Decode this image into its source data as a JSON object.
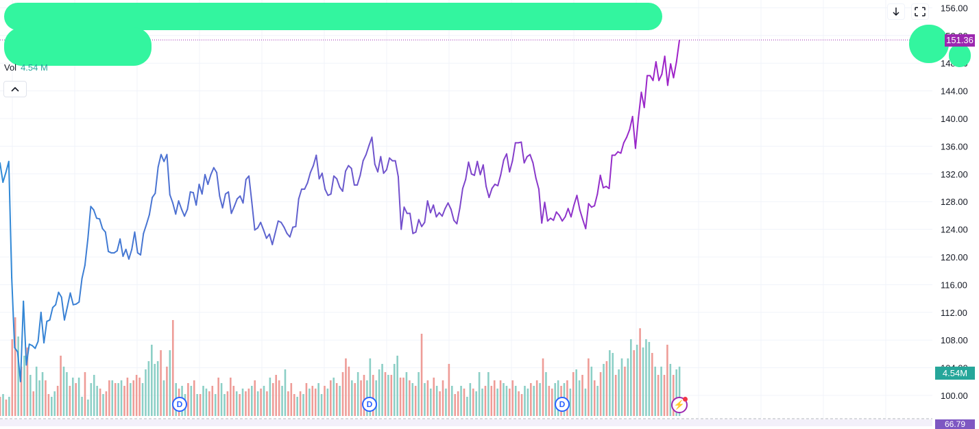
{
  "legend": {
    "volume_label": "Vol",
    "volume_value": "4.54 M"
  },
  "badges": {
    "last_price": "151.36",
    "last_volume": "4.54M",
    "oscillator": "66.79"
  },
  "events": {
    "dividend_marker": "D",
    "flash_marker": "⚡"
  },
  "colors": {
    "line_start": "#2e89d6",
    "line_mid": "#6a5acd",
    "line_end": "#a020c8",
    "volume_up": "#8ccfc6",
    "volume_down": "#ee9c97",
    "price_badge": "#9c27b0",
    "grid": "#f0f3fa"
  },
  "icons": {
    "scroll_down": "arrow-down-icon",
    "fullscreen": "fullscreen-icon",
    "collapse": "chevron-up-icon"
  },
  "chart_data": {
    "type": "line",
    "ylim": [
      98,
      157
    ],
    "y_ticks": [
      "156.00",
      "152.00",
      "148.00",
      "144.00",
      "140.00",
      "136.00",
      "132.00",
      "128.00",
      "124.00",
      "120.00",
      "116.00",
      "112.00",
      "108.00",
      "104.00",
      "100.00"
    ],
    "last_price_line": 151.36,
    "grid": true,
    "series": [
      {
        "values": [
          133.6,
          130.8,
          132.2,
          133.8,
          117,
          106.9,
          106.3,
          102,
          113.6,
          104.4,
          107.4,
          107.2,
          106.8,
          107.8,
          112,
          107.6,
          110.7,
          110.9,
          112.7,
          113.1,
          114.9,
          114.2,
          110.9,
          112.8,
          114.8,
          113.1,
          113.2,
          113.5,
          116.9,
          118.8,
          122.6,
          127.3,
          126.8,
          125.6,
          125.5,
          124.1,
          123.6,
          120.8,
          120.6,
          120.6,
          120.9,
          122.6,
          120.1,
          121.1,
          119.7,
          121.1,
          123.6,
          120.6,
          120.3,
          123.4,
          124.7,
          126.1,
          128.6,
          129.2,
          133,
          134.8,
          133.8,
          134.8,
          129,
          127.8,
          126.2,
          128.1,
          126.9,
          125.9,
          126.9,
          129.4,
          129.3,
          127.5,
          130.5,
          129.1,
          131.9,
          130.5,
          131.9,
          132.9,
          132.2,
          128.8,
          127.1,
          129.1,
          129.4,
          126.3,
          127.3,
          128.4,
          128.8,
          127.8,
          131.2,
          131.7,
          127.9,
          123.9,
          124.2,
          125,
          123.9,
          122.7,
          123.3,
          121.8,
          123.5,
          125.2,
          125,
          124.3,
          123.4,
          122.9,
          124.3,
          124.4,
          128.4,
          129.8,
          129.8,
          130.7,
          132.2,
          133.2,
          134.7,
          131.3,
          132.1,
          129.8,
          128.9,
          129.1,
          131.7,
          131.3,
          130.1,
          129.5,
          132.4,
          133.2,
          132.8,
          130.4,
          130.4,
          131.8,
          133.9,
          134.8,
          136.1,
          137.3,
          133.4,
          132.3,
          134.5,
          132.1,
          132.6,
          134.3,
          133.9,
          133.9,
          131.6,
          124,
          127.2,
          126.3,
          126.3,
          123.4,
          123.6,
          125.4,
          124.4,
          125,
          128.1,
          126.4,
          127.5,
          125.8,
          126.4,
          125.9,
          127,
          127.8,
          126.9,
          125.3,
          124.8,
          127,
          129.9,
          131.2,
          133.7,
          132,
          131.8,
          133.8,
          131.9,
          133.3,
          130.2,
          128.6,
          129.9,
          130.5,
          130.3,
          131.9,
          134,
          134.9,
          132.3,
          133.9,
          136.5,
          136.5,
          136.6,
          133.6,
          134.5,
          134.8,
          133.6,
          131.4,
          129.8,
          124.9,
          127.9,
          125.2,
          125.6,
          125.3,
          126.5,
          126,
          125.2,
          125.8,
          127,
          125.8,
          127.5,
          128.9,
          126.8,
          125.4,
          124.1,
          127.7,
          127.2,
          127.4,
          129.1,
          131.8,
          130,
          130.2,
          129.9,
          134.7,
          134.7,
          135.2,
          135,
          136.5,
          137.3,
          138.4,
          140.3,
          135.7,
          140.1,
          143.8,
          141.6,
          146.2,
          146.2,
          145.5,
          148.2,
          145.5,
          146.4,
          149,
          144.8,
          147.9,
          145.9,
          148.2,
          151.3
        ]
      }
    ],
    "volume": [
      {
        "v": 0.7,
        "up": false
      },
      {
        "v": 0.8,
        "up": true
      },
      {
        "v": 0.6,
        "up": false
      },
      {
        "v": 0.7,
        "up": true
      },
      {
        "v": 2.8,
        "up": false
      },
      {
        "v": 3.6,
        "up": false
      },
      {
        "v": 2.9,
        "up": true
      },
      {
        "v": 1.8,
        "up": false
      },
      {
        "v": 2.2,
        "up": true
      },
      {
        "v": 2.5,
        "up": false
      },
      {
        "v": 1.5,
        "up": true
      },
      {
        "v": 0.9,
        "up": false
      },
      {
        "v": 1.8,
        "up": true
      },
      {
        "v": 1.3,
        "up": true
      },
      {
        "v": 1.6,
        "up": true
      },
      {
        "v": 1.3,
        "up": false
      },
      {
        "v": 0.8,
        "up": false
      },
      {
        "v": 0.7,
        "up": true
      },
      {
        "v": 0.9,
        "up": true
      },
      {
        "v": 1.1,
        "up": false
      },
      {
        "v": 2.2,
        "up": false
      },
      {
        "v": 1.8,
        "up": true
      },
      {
        "v": 1.6,
        "up": true
      },
      {
        "v": 1.1,
        "up": false
      },
      {
        "v": 1.4,
        "up": true
      },
      {
        "v": 1.2,
        "up": false
      },
      {
        "v": 1.4,
        "up": true
      },
      {
        "v": 0.7,
        "up": true
      },
      {
        "v": 1.6,
        "up": false
      },
      {
        "v": 0.6,
        "up": true
      },
      {
        "v": 1.2,
        "up": true
      },
      {
        "v": 1.5,
        "up": true
      },
      {
        "v": 1.1,
        "up": true
      },
      {
        "v": 1.0,
        "up": false
      },
      {
        "v": 0.8,
        "up": true
      },
      {
        "v": 0.9,
        "up": false
      },
      {
        "v": 1.3,
        "up": false
      },
      {
        "v": 1.3,
        "up": true
      },
      {
        "v": 1.2,
        "up": false
      },
      {
        "v": 1.2,
        "up": true
      },
      {
        "v": 1.3,
        "up": true
      },
      {
        "v": 1.1,
        "up": false
      },
      {
        "v": 1.4,
        "up": false
      },
      {
        "v": 1.2,
        "up": true
      },
      {
        "v": 1.3,
        "up": false
      },
      {
        "v": 1.5,
        "up": false
      },
      {
        "v": 1.4,
        "up": false
      },
      {
        "v": 1.2,
        "up": true
      },
      {
        "v": 1.7,
        "up": true
      },
      {
        "v": 2.0,
        "up": true
      },
      {
        "v": 2.6,
        "up": true
      },
      {
        "v": 1.9,
        "up": true
      },
      {
        "v": 2.0,
        "up": true
      },
      {
        "v": 2.4,
        "up": false
      },
      {
        "v": 1.3,
        "up": true
      },
      {
        "v": 1.8,
        "up": false
      },
      {
        "v": 2.4,
        "up": true
      },
      {
        "v": 3.5,
        "up": false
      },
      {
        "v": 1.2,
        "up": true
      },
      {
        "v": 1.0,
        "up": false
      },
      {
        "v": 1.1,
        "up": true
      },
      {
        "v": 0.8,
        "up": true
      },
      {
        "v": 1.2,
        "up": false
      },
      {
        "v": 1.1,
        "up": true
      },
      {
        "v": 1.3,
        "up": false
      },
      {
        "v": 0.8,
        "up": true
      },
      {
        "v": 0.8,
        "up": false
      },
      {
        "v": 1.1,
        "up": true
      },
      {
        "v": 1.0,
        "up": true
      },
      {
        "v": 0.9,
        "up": false
      },
      {
        "v": 1.1,
        "up": false
      },
      {
        "v": 0.8,
        "up": true
      },
      {
        "v": 1.4,
        "up": false
      },
      {
        "v": 1.2,
        "up": true
      },
      {
        "v": 0.8,
        "up": true
      },
      {
        "v": 0.9,
        "up": false
      },
      {
        "v": 1.4,
        "up": false
      },
      {
        "v": 1.1,
        "up": false
      },
      {
        "v": 0.9,
        "up": true
      },
      {
        "v": 0.8,
        "up": false
      },
      {
        "v": 1.0,
        "up": true
      },
      {
        "v": 0.9,
        "up": false
      },
      {
        "v": 1.0,
        "up": false
      },
      {
        "v": 1.1,
        "up": true
      },
      {
        "v": 1.3,
        "up": false
      },
      {
        "v": 0.9,
        "up": true
      },
      {
        "v": 1.0,
        "up": false
      },
      {
        "v": 1.1,
        "up": true
      },
      {
        "v": 0.9,
        "up": false
      },
      {
        "v": 1.4,
        "up": true
      },
      {
        "v": 1.2,
        "up": false
      },
      {
        "v": 1.5,
        "up": false
      },
      {
        "v": 1.3,
        "up": false
      },
      {
        "v": 1.1,
        "up": true
      },
      {
        "v": 1.7,
        "up": true
      },
      {
        "v": 0.9,
        "up": false
      },
      {
        "v": 1.2,
        "up": false
      },
      {
        "v": 0.8,
        "up": false
      },
      {
        "v": 0.7,
        "up": true
      },
      {
        "v": 0.9,
        "up": false
      },
      {
        "v": 0.8,
        "up": true
      },
      {
        "v": 1.2,
        "up": false
      },
      {
        "v": 1.0,
        "up": true
      },
      {
        "v": 1.1,
        "up": false
      },
      {
        "v": 1.0,
        "up": false
      },
      {
        "v": 1.2,
        "up": true
      },
      {
        "v": 0.8,
        "up": true
      },
      {
        "v": 1.1,
        "up": false
      },
      {
        "v": 1.0,
        "up": true
      },
      {
        "v": 1.3,
        "up": false
      },
      {
        "v": 1.4,
        "up": true
      },
      {
        "v": 1.2,
        "up": false
      },
      {
        "v": 1.1,
        "up": true
      },
      {
        "v": 1.6,
        "up": false
      },
      {
        "v": 2.1,
        "up": false
      },
      {
        "v": 1.8,
        "up": false
      },
      {
        "v": 1.3,
        "up": true
      },
      {
        "v": 1.2,
        "up": false
      },
      {
        "v": 1.6,
        "up": true
      },
      {
        "v": 1.3,
        "up": false
      },
      {
        "v": 1.5,
        "up": false
      },
      {
        "v": 1.3,
        "up": true
      },
      {
        "v": 2.1,
        "up": true
      },
      {
        "v": 1.5,
        "up": false
      },
      {
        "v": 1.3,
        "up": true
      },
      {
        "v": 1.7,
        "up": true
      },
      {
        "v": 1.9,
        "up": true
      },
      {
        "v": 1.6,
        "up": false
      },
      {
        "v": 1.5,
        "up": true
      },
      {
        "v": 1.5,
        "up": false
      },
      {
        "v": 1.9,
        "up": true
      },
      {
        "v": 2.2,
        "up": true
      },
      {
        "v": 1.4,
        "up": false
      },
      {
        "v": 1.4,
        "up": false
      },
      {
        "v": 1.6,
        "up": true
      },
      {
        "v": 1.3,
        "up": false
      },
      {
        "v": 1.2,
        "up": true
      },
      {
        "v": 1.1,
        "up": false
      },
      {
        "v": 1.6,
        "up": true
      },
      {
        "v": 3.0,
        "up": false
      },
      {
        "v": 1.2,
        "up": true
      },
      {
        "v": 1.3,
        "up": false
      },
      {
        "v": 1.0,
        "up": true
      },
      {
        "v": 1.4,
        "up": false
      },
      {
        "v": 1.1,
        "up": true
      },
      {
        "v": 0.9,
        "up": false
      },
      {
        "v": 1.3,
        "up": false
      },
      {
        "v": 1.0,
        "up": true
      },
      {
        "v": 1.9,
        "up": false
      },
      {
        "v": 1.1,
        "up": true
      },
      {
        "v": 0.8,
        "up": false
      },
      {
        "v": 0.9,
        "up": false
      },
      {
        "v": 1.1,
        "up": true
      },
      {
        "v": 1.0,
        "up": false
      },
      {
        "v": 0.7,
        "up": true
      },
      {
        "v": 1.2,
        "up": true
      },
      {
        "v": 1.0,
        "up": false
      },
      {
        "v": 0.9,
        "up": true
      },
      {
        "v": 1.6,
        "up": true
      },
      {
        "v": 1.0,
        "up": true
      },
      {
        "v": 1.1,
        "up": false
      },
      {
        "v": 1.6,
        "up": true
      },
      {
        "v": 1.1,
        "up": false
      },
      {
        "v": 1.3,
        "up": false
      },
      {
        "v": 1.0,
        "up": true
      },
      {
        "v": 1.3,
        "up": false
      },
      {
        "v": 1.2,
        "up": true
      },
      {
        "v": 1.1,
        "up": true
      },
      {
        "v": 1.0,
        "up": false
      },
      {
        "v": 1.3,
        "up": false
      },
      {
        "v": 1.1,
        "up": true
      },
      {
        "v": 0.9,
        "up": false
      },
      {
        "v": 0.8,
        "up": false
      },
      {
        "v": 1.1,
        "up": true
      },
      {
        "v": 1.0,
        "up": true
      },
      {
        "v": 1.2,
        "up": false
      },
      {
        "v": 1.1,
        "up": true
      },
      {
        "v": 1.3,
        "up": false
      },
      {
        "v": 1.2,
        "up": true
      },
      {
        "v": 2.1,
        "up": false
      },
      {
        "v": 1.6,
        "up": true
      },
      {
        "v": 1.1,
        "up": false
      },
      {
        "v": 1.0,
        "up": false
      },
      {
        "v": 1.2,
        "up": true
      },
      {
        "v": 1.3,
        "up": true
      },
      {
        "v": 1.1,
        "up": false
      },
      {
        "v": 1.2,
        "up": true
      },
      {
        "v": 1.3,
        "up": false
      },
      {
        "v": 1.0,
        "up": true
      },
      {
        "v": 1.6,
        "up": false
      },
      {
        "v": 1.7,
        "up": true
      },
      {
        "v": 1.3,
        "up": true
      },
      {
        "v": 1.5,
        "up": false
      },
      {
        "v": 1.0,
        "up": true
      },
      {
        "v": 2.1,
        "up": false
      },
      {
        "v": 1.8,
        "up": true
      },
      {
        "v": 1.3,
        "up": false
      },
      {
        "v": 1.1,
        "up": true
      },
      {
        "v": 1.6,
        "up": false
      },
      {
        "v": 1.9,
        "up": true
      },
      {
        "v": 2.0,
        "up": false
      },
      {
        "v": 2.4,
        "up": true
      },
      {
        "v": 2.3,
        "up": true
      },
      {
        "v": 1.5,
        "up": false
      },
      {
        "v": 1.7,
        "up": true
      },
      {
        "v": 2.1,
        "up": true
      },
      {
        "v": 1.8,
        "up": false
      },
      {
        "v": 2.1,
        "up": true
      },
      {
        "v": 2.8,
        "up": true
      },
      {
        "v": 2.4,
        "up": false
      },
      {
        "v": 2.6,
        "up": true
      },
      {
        "v": 3.2,
        "up": false
      },
      {
        "v": 2.5,
        "up": true
      },
      {
        "v": 2.8,
        "up": true
      },
      {
        "v": 2.7,
        "up": true
      },
      {
        "v": 2.3,
        "up": false
      },
      {
        "v": 1.8,
        "up": true
      },
      {
        "v": 1.5,
        "up": false
      },
      {
        "v": 1.8,
        "up": true
      },
      {
        "v": 1.5,
        "up": false
      },
      {
        "v": 2.6,
        "up": false
      },
      {
        "v": 1.9,
        "up": true
      },
      {
        "v": 1.5,
        "up": false
      },
      {
        "v": 1.7,
        "up": true
      },
      {
        "v": 1.8,
        "up": true
      }
    ]
  }
}
